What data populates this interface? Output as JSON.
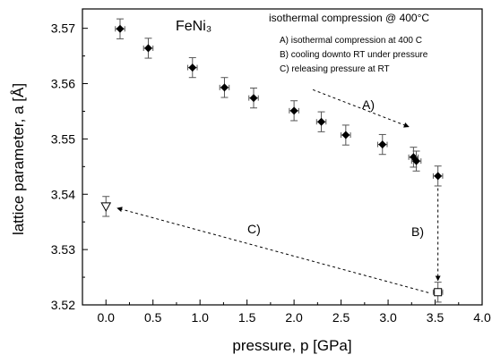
{
  "chart_data": {
    "type": "scatter",
    "title": "FeNi₃",
    "subtitle": "isothermal compression @ 400°C",
    "xlabel": "pressure, p [GPa]",
    "ylabel": "lattice parameter, a [Å]",
    "xlim": [
      -0.25,
      4.0
    ],
    "ylim": [
      3.52,
      3.5735
    ],
    "x_ticks": [
      "0.0",
      "0.5",
      "1.0",
      "1.5",
      "2.0",
      "2.5",
      "3.0",
      "3.5",
      "4.0"
    ],
    "y_ticks": [
      "3.52",
      "3.53",
      "3.54",
      "3.55",
      "3.56",
      "3.57"
    ],
    "grid": false,
    "notes": [
      "A) isothermal compression at 400 C",
      "B) cooling downto RT under pressure",
      "C) releasing pressure at RT"
    ],
    "annotations": [
      "A)",
      "B)",
      "C)"
    ],
    "series": [
      {
        "marker": "filled-diamond",
        "points": [
          {
            "x": 0.15,
            "y": 3.5699,
            "xerr": 0.05,
            "yerr": 0.0018
          },
          {
            "x": 0.45,
            "y": 3.5664,
            "xerr": 0.05,
            "yerr": 0.0018
          },
          {
            "x": 0.92,
            "y": 3.5629,
            "xerr": 0.05,
            "yerr": 0.0018
          },
          {
            "x": 1.26,
            "y": 3.5593,
            "xerr": 0.05,
            "yerr": 0.0018
          },
          {
            "x": 1.57,
            "y": 3.5574,
            "xerr": 0.05,
            "yerr": 0.0018
          },
          {
            "x": 2.0,
            "y": 3.5551,
            "xerr": 0.05,
            "yerr": 0.0018
          },
          {
            "x": 2.29,
            "y": 3.5531,
            "xerr": 0.05,
            "yerr": 0.0018
          },
          {
            "x": 2.55,
            "y": 3.5507,
            "xerr": 0.05,
            "yerr": 0.0018
          },
          {
            "x": 2.94,
            "y": 3.549,
            "xerr": 0.05,
            "yerr": 0.0018
          },
          {
            "x": 3.27,
            "y": 3.5467,
            "xerr": 0.05,
            "yerr": 0.0018
          },
          {
            "x": 3.3,
            "y": 3.546,
            "xerr": 0.05,
            "yerr": 0.0018
          },
          {
            "x": 3.53,
            "y": 3.5433,
            "xerr": 0.05,
            "yerr": 0.0018
          }
        ]
      },
      {
        "marker": "open-square",
        "points": [
          {
            "x": 3.53,
            "y": 3.5223,
            "xerr": 0.05,
            "yerr": 0.0018
          }
        ]
      },
      {
        "marker": "open-triangle-down",
        "points": [
          {
            "x": 0.0,
            "y": 3.5378,
            "xerr": 0.0,
            "yerr": 0.0018
          }
        ]
      }
    ]
  }
}
